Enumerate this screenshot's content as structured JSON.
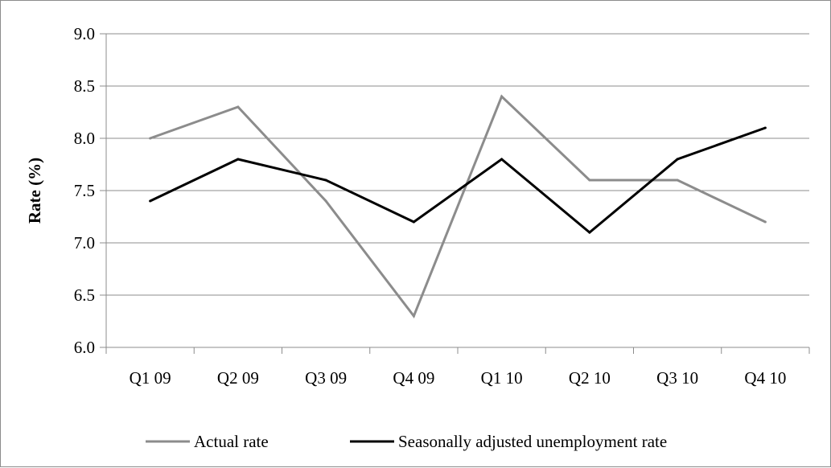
{
  "chart_data": {
    "type": "line",
    "categories": [
      "Q1 09",
      "Q2 09",
      "Q3 09",
      "Q4 09",
      "Q1 10",
      "Q2 10",
      "Q3 10",
      "Q4 10"
    ],
    "series": [
      {
        "name": "Actual rate",
        "color": "#8c8c8c",
        "values": [
          8.0,
          8.3,
          7.4,
          6.3,
          8.4,
          7.6,
          7.6,
          7.2
        ]
      },
      {
        "name": "Seasonally adjusted unemployment rate",
        "color": "#000000",
        "values": [
          7.4,
          7.8,
          7.6,
          7.2,
          7.8,
          7.1,
          7.8,
          8.1
        ]
      }
    ],
    "ylabel": "Rate (%)",
    "ylim": [
      6.0,
      9.0
    ],
    "yticks": [
      "6.0",
      "6.5",
      "7.0",
      "7.5",
      "8.0",
      "8.5",
      "9.0"
    ],
    "grid": "horizontal",
    "legend": "bottom"
  }
}
